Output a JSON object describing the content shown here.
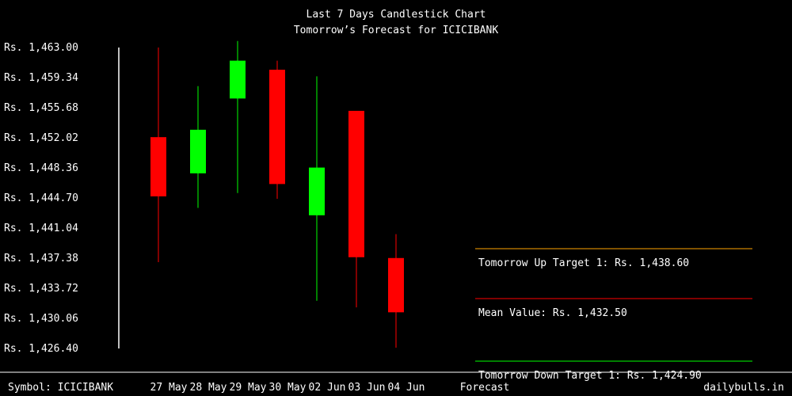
{
  "colors": {
    "background": "#000000",
    "text": "#ffffff",
    "up": "#00ff00",
    "down": "#ff0000",
    "up_target_line": "#ffa500",
    "mean_line": "#ff0000",
    "down_target_line": "#00ff00"
  },
  "chart_data": {
    "type": "candlestick",
    "title": "Last 7 Days Candlestick Chart",
    "subtitle": "Tomorrow’s Forecast for ICICIBANK",
    "ylim": [
      1426.4,
      1463.0
    ],
    "y_ticks": [
      "Rs. 1,463.00",
      "Rs. 1,459.34",
      "Rs. 1,455.68",
      "Rs. 1,452.02",
      "Rs. 1,448.36",
      "Rs. 1,444.70",
      "Rs. 1,441.04",
      "Rs. 1,437.38",
      "Rs. 1,433.72",
      "Rs. 1,430.06",
      "Rs. 1,426.40"
    ],
    "categories": [
      "27 May",
      "28 May",
      "29 May",
      "30 May",
      "02 Jun",
      "03 Jun",
      "04 Jun"
    ],
    "candles": [
      {
        "date": "27 May",
        "open": 1452.1,
        "close": 1444.9,
        "high": 1463.0,
        "low": 1436.9
      },
      {
        "date": "28 May",
        "open": 1447.7,
        "close": 1453.0,
        "high": 1458.3,
        "low": 1443.5
      },
      {
        "date": "29 May",
        "open": 1456.8,
        "close": 1461.4,
        "high": 1464.4,
        "low": 1445.3
      },
      {
        "date": "30 May",
        "open": 1460.3,
        "close": 1446.4,
        "high": 1461.4,
        "low": 1444.6
      },
      {
        "date": "02 Jun",
        "open": 1442.6,
        "close": 1448.4,
        "high": 1459.5,
        "low": 1432.2
      },
      {
        "date": "03 Jun",
        "open": 1455.3,
        "close": 1437.5,
        "high": 1455.3,
        "low": 1431.4
      },
      {
        "date": "04 Jun",
        "open": 1437.4,
        "close": 1430.8,
        "high": 1440.3,
        "low": 1426.5
      }
    ],
    "forecast": {
      "label": "Forecast",
      "up_target_label": "Tomorrow Up Target 1: Rs. 1,438.60",
      "mean_label": "Mean Value: Rs. 1,432.50",
      "down_target_label": "Tomorrow Down Target 1: Rs. 1,424.90"
    }
  },
  "footer": {
    "symbol_label": "Symbol: ICICIBANK",
    "site": "dailybulls.in"
  }
}
